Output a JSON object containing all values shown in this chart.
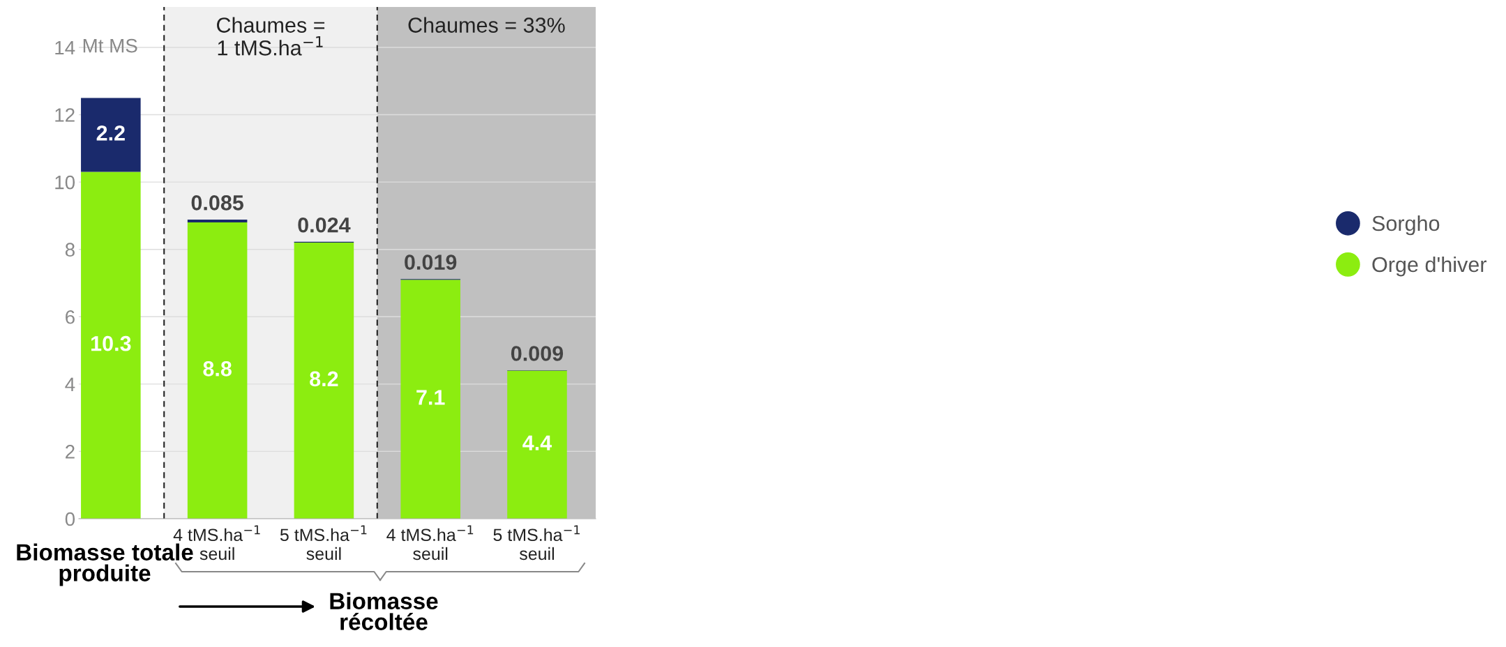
{
  "chart_data": {
    "type": "bar",
    "stacked": true,
    "ylabel": "Mt MS",
    "categories": [
      null,
      "4 tMS.ha$^{−1}$\nseuil",
      "5 tMS.ha$^{−1}$\nseuil",
      "4 tMS.ha$^{−1}$\nseuil",
      "5 tMS.ha$^{−1}$\nseuil"
    ],
    "series": [
      {
        "name": "Orge d'hiver",
        "color": "#8ced10",
        "values": [
          10.3,
          8.8,
          8.2,
          7.1,
          4.4
        ]
      },
      {
        "name": "Sorgho",
        "color": "#1a2a6c",
        "values": [
          2.2,
          0.085,
          0.024,
          0.019,
          0.009
        ]
      }
    ],
    "ylim": [
      0,
      15.2
    ],
    "yticks": [
      0,
      2,
      4,
      6,
      8,
      10,
      12,
      14
    ],
    "grid": "y",
    "legend": "right",
    "data_labels": true,
    "annotations": [
      "Biomasse totale\nproduite",
      "Biomasse\nrécoltée",
      "Chaumes =\n1 tMS.ha$^{−1}$",
      "Chaumes = 33%"
    ]
  }
}
